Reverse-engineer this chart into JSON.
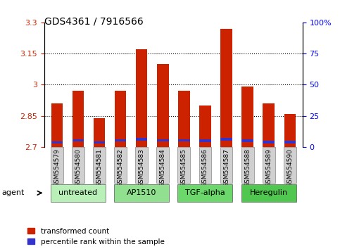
{
  "title": "GDS4361 / 7916566",
  "samples": [
    "GSM554579",
    "GSM554580",
    "GSM554581",
    "GSM554582",
    "GSM554583",
    "GSM554584",
    "GSM554585",
    "GSM554586",
    "GSM554587",
    "GSM554588",
    "GSM554589",
    "GSM554590"
  ],
  "red_tops": [
    2.91,
    2.97,
    2.84,
    2.97,
    3.17,
    3.1,
    2.97,
    2.9,
    3.27,
    2.99,
    2.91,
    2.86
  ],
  "blue_bottoms": [
    2.715,
    2.725,
    2.715,
    2.725,
    2.73,
    2.725,
    2.725,
    2.724,
    2.73,
    2.724,
    2.718,
    2.718
  ],
  "blue_heights": [
    0.012,
    0.012,
    0.012,
    0.012,
    0.012,
    0.012,
    0.012,
    0.012,
    0.012,
    0.012,
    0.012,
    0.012
  ],
  "ymin": 2.7,
  "ymax": 3.3,
  "yticks_left": [
    2.7,
    2.85,
    3.0,
    3.15,
    3.3
  ],
  "ytick_left_labels": [
    "2.7",
    "2.85",
    "3",
    "3.15",
    "3.3"
  ],
  "ytick_right_labels": [
    "0",
    "25",
    "50",
    "75",
    "100%"
  ],
  "gridlines": [
    2.85,
    3.0,
    3.15
  ],
  "agents": [
    {
      "label": "untreated",
      "start": 0,
      "end": 2,
      "color": "#b8f0b8"
    },
    {
      "label": "AP1510",
      "start": 3,
      "end": 5,
      "color": "#90e090"
    },
    {
      "label": "TGF-alpha",
      "start": 6,
      "end": 8,
      "color": "#6cd86c"
    },
    {
      "label": "Heregulin",
      "start": 9,
      "end": 11,
      "color": "#50c850"
    }
  ],
  "red_color": "#cc2200",
  "blue_color": "#3333cc",
  "bar_width": 0.55,
  "tick_bg_color": "#d0d0d0",
  "agent_arrow_label": "agent"
}
